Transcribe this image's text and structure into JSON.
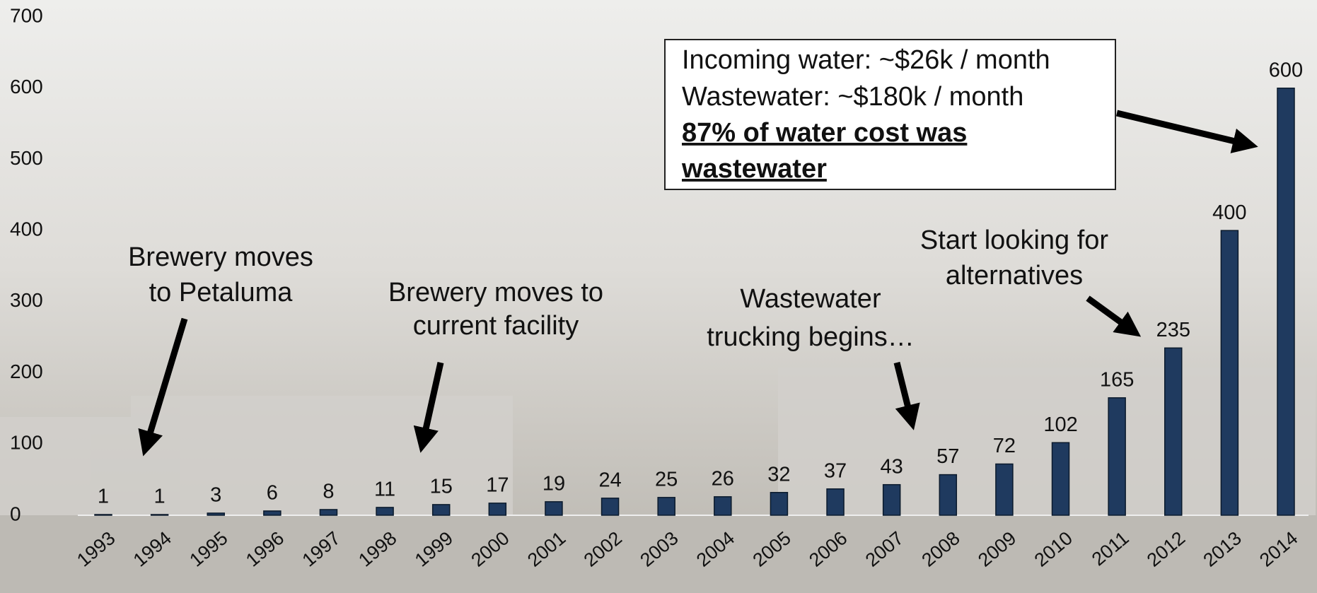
{
  "chart_data": {
    "type": "bar",
    "categories": [
      "1993",
      "1994",
      "1995",
      "1996",
      "1997",
      "1998",
      "1999",
      "2000",
      "2001",
      "2002",
      "2003",
      "2004",
      "2005",
      "2006",
      "2007",
      "2008",
      "2009",
      "2010",
      "2011",
      "2012",
      "2013",
      "2014"
    ],
    "values": [
      1,
      1,
      3,
      6,
      8,
      11,
      15,
      17,
      19,
      24,
      25,
      26,
      32,
      37,
      43,
      57,
      72,
      102,
      165,
      235,
      400,
      600
    ],
    "color": "#1f3a5f",
    "ylim": [
      0,
      700
    ],
    "yticks": [
      0,
      100,
      200,
      300,
      400,
      500,
      600,
      700
    ],
    "annotations": [
      {
        "lines": [
          "Brewery moves",
          "to Petaluma"
        ]
      },
      {
        "lines": [
          "Brewery moves to",
          "current facility"
        ]
      },
      {
        "lines": [
          "Wastewater",
          "trucking begins…"
        ]
      },
      {
        "lines": [
          "Start looking for",
          "alternatives"
        ]
      },
      {
        "lines": [
          "Incoming water: ~$26k / month",
          "Wastewater: ~$180k / month",
          "87% of water cost was",
          "wastewater"
        ]
      }
    ]
  }
}
